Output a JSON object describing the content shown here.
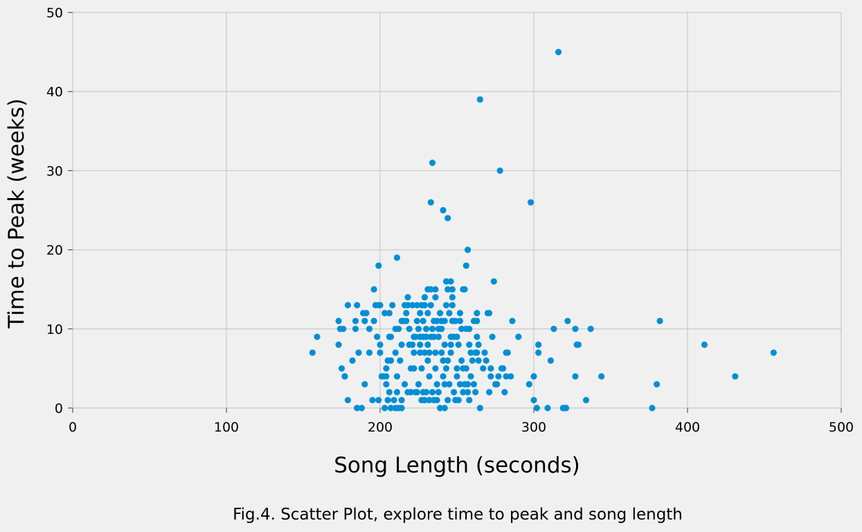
{
  "caption": "Fig.4. Scatter Plot, explore time to peak and song length",
  "chart_data": {
    "type": "scatter",
    "xlabel": "Song Length (seconds)",
    "ylabel": "Time to Peak (weeks)",
    "xlim": [
      0,
      500
    ],
    "ylim": [
      0,
      50
    ],
    "xticks": [
      "0",
      "100",
      "200",
      "300",
      "400",
      "500"
    ],
    "yticks": [
      "0",
      "10",
      "20",
      "30",
      "40",
      "50"
    ],
    "grid": true,
    "marker_color": "#008fd5",
    "points": [
      [
        156,
        7
      ],
      [
        159,
        9
      ],
      [
        173,
        11
      ],
      [
        173,
        8
      ],
      [
        174,
        10
      ],
      [
        175,
        5
      ],
      [
        176,
        10
      ],
      [
        177,
        4
      ],
      [
        177,
        4
      ],
      [
        179,
        13
      ],
      [
        179,
        1
      ],
      [
        182,
        6
      ],
      [
        184,
        11
      ],
      [
        184,
        10
      ],
      [
        185,
        13
      ],
      [
        185,
        0
      ],
      [
        186,
        7
      ],
      [
        188,
        0
      ],
      [
        189,
        12
      ],
      [
        190,
        11
      ],
      [
        190,
        3
      ],
      [
        191,
        12
      ],
      [
        193,
        10
      ],
      [
        193,
        7
      ],
      [
        195,
        1
      ],
      [
        196,
        15
      ],
      [
        196,
        11
      ],
      [
        197,
        13
      ],
      [
        198,
        9
      ],
      [
        199,
        13
      ],
      [
        199,
        1
      ],
      [
        199,
        18
      ],
      [
        200,
        7
      ],
      [
        200,
        8
      ],
      [
        200,
        13
      ],
      [
        201,
        4
      ],
      [
        202,
        4
      ],
      [
        203,
        12
      ],
      [
        203,
        0
      ],
      [
        204,
        5
      ],
      [
        204,
        4
      ],
      [
        204,
        3
      ],
      [
        205,
        1
      ],
      [
        205,
        6
      ],
      [
        206,
        12
      ],
      [
        206,
        9
      ],
      [
        206,
        2
      ],
      [
        207,
        6
      ],
      [
        207,
        0
      ],
      [
        207,
        9
      ],
      [
        208,
        13
      ],
      [
        209,
        1
      ],
      [
        210,
        10
      ],
      [
        210,
        7
      ],
      [
        210,
        0
      ],
      [
        211,
        19
      ],
      [
        211,
        4
      ],
      [
        211,
        2
      ],
      [
        212,
        10
      ],
      [
        212,
        0
      ],
      [
        213,
        6
      ],
      [
        214,
        11
      ],
      [
        214,
        1
      ],
      [
        214,
        8
      ],
      [
        214,
        0
      ],
      [
        215,
        11
      ],
      [
        216,
        13
      ],
      [
        216,
        3
      ],
      [
        217,
        11
      ],
      [
        217,
        12
      ],
      [
        218,
        14
      ],
      [
        218,
        13
      ],
      [
        218,
        2
      ],
      [
        219,
        8
      ],
      [
        219,
        10
      ],
      [
        220,
        2
      ],
      [
        220,
        5
      ],
      [
        221,
        8
      ],
      [
        221,
        13
      ],
      [
        222,
        9
      ],
      [
        222,
        7
      ],
      [
        222,
        5
      ],
      [
        223,
        2
      ],
      [
        223,
        9
      ],
      [
        224,
        2
      ],
      [
        224,
        11
      ],
      [
        224,
        13
      ],
      [
        225,
        3
      ],
      [
        225,
        10
      ],
      [
        226,
        7
      ],
      [
        226,
        8
      ],
      [
        226,
        12
      ],
      [
        226,
        9
      ],
      [
        227,
        1
      ],
      [
        227,
        5
      ],
      [
        227,
        13
      ],
      [
        228,
        2
      ],
      [
        228,
        9
      ],
      [
        228,
        11
      ],
      [
        229,
        13
      ],
      [
        229,
        7
      ],
      [
        229,
        14
      ],
      [
        229,
        1
      ],
      [
        230,
        9
      ],
      [
        230,
        2
      ],
      [
        230,
        10
      ],
      [
        231,
        15
      ],
      [
        231,
        12
      ],
      [
        231,
        8
      ],
      [
        231,
        6
      ],
      [
        232,
        4
      ],
      [
        232,
        1
      ],
      [
        232,
        7
      ],
      [
        233,
        15
      ],
      [
        233,
        13
      ],
      [
        233,
        9
      ],
      [
        233,
        26
      ],
      [
        234,
        31
      ],
      [
        234,
        10
      ],
      [
        234,
        2
      ],
      [
        235,
        1
      ],
      [
        235,
        11
      ],
      [
        235,
        9
      ],
      [
        236,
        15
      ],
      [
        236,
        7
      ],
      [
        236,
        5
      ],
      [
        236,
        14
      ],
      [
        237,
        11
      ],
      [
        237,
        3
      ],
      [
        237,
        1
      ],
      [
        238,
        9
      ],
      [
        238,
        10
      ],
      [
        238,
        2
      ],
      [
        239,
        0
      ],
      [
        239,
        12
      ],
      [
        240,
        10
      ],
      [
        240,
        7
      ],
      [
        240,
        11
      ],
      [
        241,
        4
      ],
      [
        241,
        6
      ],
      [
        241,
        25
      ],
      [
        242,
        11
      ],
      [
        242,
        8
      ],
      [
        242,
        3
      ],
      [
        242,
        0
      ],
      [
        243,
        16
      ],
      [
        243,
        13
      ],
      [
        243,
        5
      ],
      [
        244,
        15
      ],
      [
        244,
        24
      ],
      [
        244,
        1
      ],
      [
        244,
        6
      ],
      [
        245,
        3
      ],
      [
        245,
        12
      ],
      [
        246,
        16
      ],
      [
        246,
        8
      ],
      [
        246,
        7
      ],
      [
        246,
        9
      ],
      [
        247,
        13
      ],
      [
        247,
        11
      ],
      [
        247,
        15
      ],
      [
        247,
        14
      ],
      [
        248,
        2
      ],
      [
        248,
        9
      ],
      [
        249,
        11
      ],
      [
        249,
        1
      ],
      [
        250,
        5
      ],
      [
        250,
        4
      ],
      [
        250,
        9
      ],
      [
        251,
        1
      ],
      [
        251,
        8
      ],
      [
        252,
        12
      ],
      [
        252,
        11
      ],
      [
        252,
        3
      ],
      [
        253,
        6
      ],
      [
        253,
        10
      ],
      [
        254,
        15
      ],
      [
        254,
        2
      ],
      [
        254,
        5
      ],
      [
        255,
        3
      ],
      [
        255,
        15
      ],
      [
        256,
        10
      ],
      [
        256,
        5
      ],
      [
        256,
        18
      ],
      [
        257,
        3
      ],
      [
        257,
        20
      ],
      [
        257,
        2
      ],
      [
        258,
        1
      ],
      [
        258,
        8
      ],
      [
        258,
        10
      ],
      [
        259,
        4
      ],
      [
        259,
        7
      ],
      [
        260,
        6
      ],
      [
        261,
        11
      ],
      [
        261,
        3
      ],
      [
        262,
        7
      ],
      [
        262,
        2
      ],
      [
        263,
        12
      ],
      [
        263,
        11
      ],
      [
        263,
        9
      ],
      [
        263,
        7
      ],
      [
        264,
        8
      ],
      [
        264,
        6
      ],
      [
        265,
        0
      ],
      [
        265,
        39
      ],
      [
        267,
        5
      ],
      [
        268,
        7
      ],
      [
        269,
        6
      ],
      [
        270,
        12
      ],
      [
        271,
        2
      ],
      [
        271,
        12
      ],
      [
        272,
        4
      ],
      [
        272,
        5
      ],
      [
        273,
        9
      ],
      [
        274,
        16
      ],
      [
        275,
        3
      ],
      [
        276,
        3
      ],
      [
        277,
        4
      ],
      [
        278,
        30
      ],
      [
        279,
        5
      ],
      [
        280,
        5
      ],
      [
        281,
        2
      ],
      [
        282,
        7
      ],
      [
        282,
        4
      ],
      [
        283,
        7
      ],
      [
        285,
        4
      ],
      [
        286,
        11
      ],
      [
        290,
        9
      ],
      [
        297,
        3
      ],
      [
        298,
        26
      ],
      [
        300,
        4
      ],
      [
        300,
        1
      ],
      [
        302,
        0
      ],
      [
        303,
        8
      ],
      [
        303,
        7
      ],
      [
        309,
        0
      ],
      [
        311,
        6
      ],
      [
        313,
        10
      ],
      [
        316,
        45
      ],
      [
        319,
        0
      ],
      [
        320,
        0
      ],
      [
        321,
        0
      ],
      [
        322,
        11
      ],
      [
        327,
        10
      ],
      [
        327,
        4
      ],
      [
        328,
        8
      ],
      [
        329,
        8
      ],
      [
        334,
        1
      ],
      [
        337,
        10
      ],
      [
        344,
        4
      ],
      [
        377,
        0
      ],
      [
        380,
        3
      ],
      [
        382,
        11
      ],
      [
        411,
        8
      ],
      [
        431,
        4
      ],
      [
        456,
        7
      ]
    ]
  }
}
